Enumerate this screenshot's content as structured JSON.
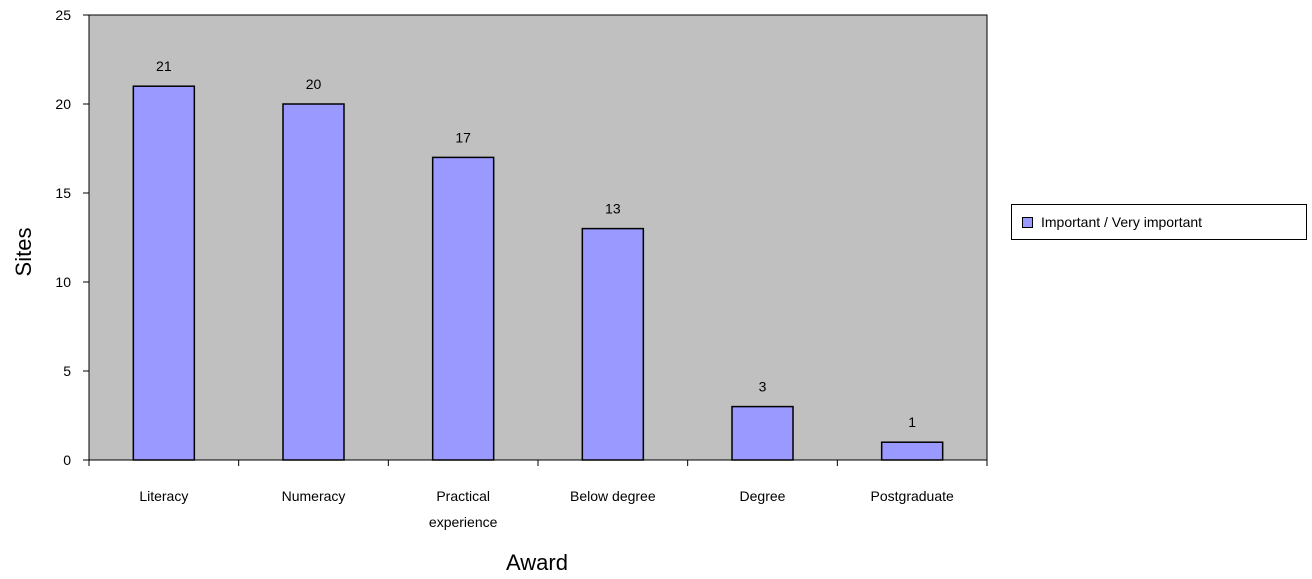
{
  "chart_data": {
    "type": "bar",
    "title": "",
    "xlabel": "Award",
    "ylabel": "Sites",
    "categories": [
      [
        "Literacy"
      ],
      [
        "Numeracy"
      ],
      [
        "Practical",
        "experience"
      ],
      [
        "Below degree"
      ],
      [
        "Degree"
      ],
      [
        "Postgraduate"
      ]
    ],
    "series": [
      {
        "name": "Important / Very important",
        "values": [
          21,
          20,
          17,
          13,
          3,
          1
        ]
      }
    ],
    "ylim": [
      0,
      25
    ],
    "yticks": [
      0,
      5,
      10,
      15,
      20,
      25
    ],
    "grid": false,
    "legend_position": "right",
    "colors": {
      "bar": "#9999ff",
      "plot_background": "#c0c0c0",
      "outline": "#000000"
    }
  }
}
